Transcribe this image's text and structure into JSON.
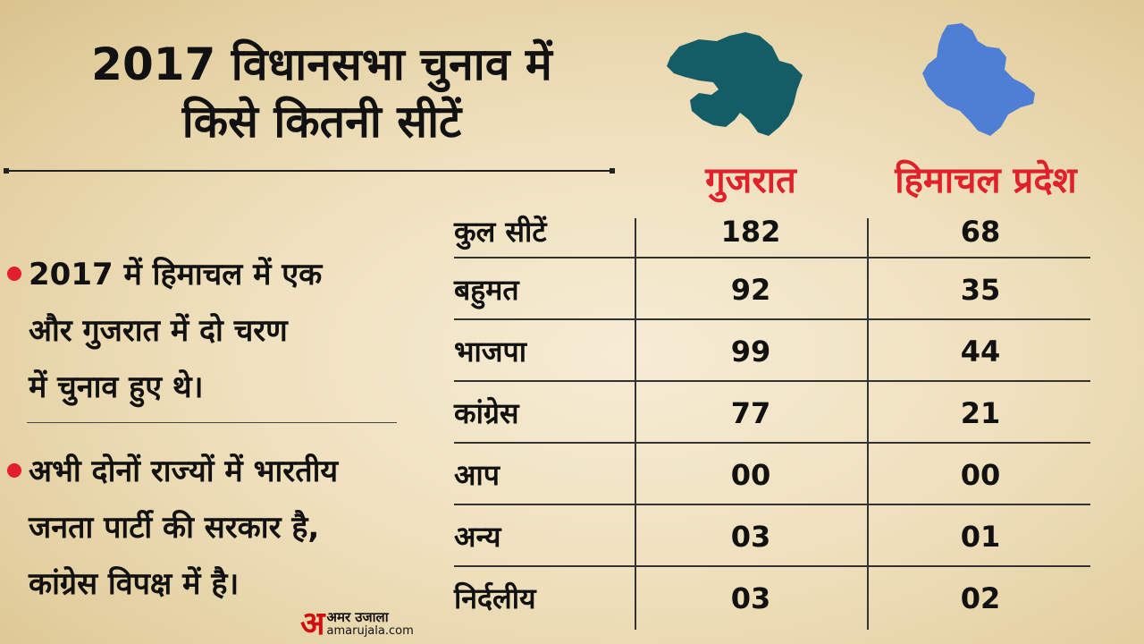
{
  "title": {
    "line1": "2017 विधानसभा चुनाव में",
    "line2": "किसे कितनी सीटें"
  },
  "bullets": [
    {
      "lines": [
        "2017 में हिमाचल में एक",
        "और गुजरात में दो चरण",
        "में चुनाव हुए थे।"
      ]
    },
    {
      "lines": [
        "अभी दोनों राज्यों में भारतीय",
        "जनता पार्टी की सरकार है,",
        "कांग्रेस विपक्ष में है।"
      ]
    }
  ],
  "states": {
    "gujarat": {
      "label": "गुजरात",
      "map_color": "#145c66",
      "map_icon": "gujarat-map-icon"
    },
    "himachal": {
      "label": "हिमाचल प्रदेश",
      "map_color": "#4f7fd4",
      "map_icon": "himachal-map-icon"
    }
  },
  "table": {
    "rows": [
      {
        "label": "कुल सीटें",
        "gujarat": "182",
        "himachal": "68"
      },
      {
        "label": "बहुमत",
        "gujarat": "92",
        "himachal": "35"
      },
      {
        "label": "भाजपा",
        "gujarat": "99",
        "himachal": "44"
      },
      {
        "label": "कांग्रेस",
        "gujarat": "77",
        "himachal": "21"
      },
      {
        "label": "आप",
        "gujarat": "00",
        "himachal": "00"
      },
      {
        "label": "अन्य",
        "gujarat": "03",
        "himachal": "01"
      },
      {
        "label": "निर्दलीय",
        "gujarat": "03",
        "himachal": "02"
      }
    ]
  },
  "logo": {
    "glyph": "अ",
    "name": "अमर उजाला",
    "url": "amarujala.com"
  },
  "colors": {
    "accent": "#e0202a",
    "background": "#efe0bd",
    "text": "#111111"
  }
}
